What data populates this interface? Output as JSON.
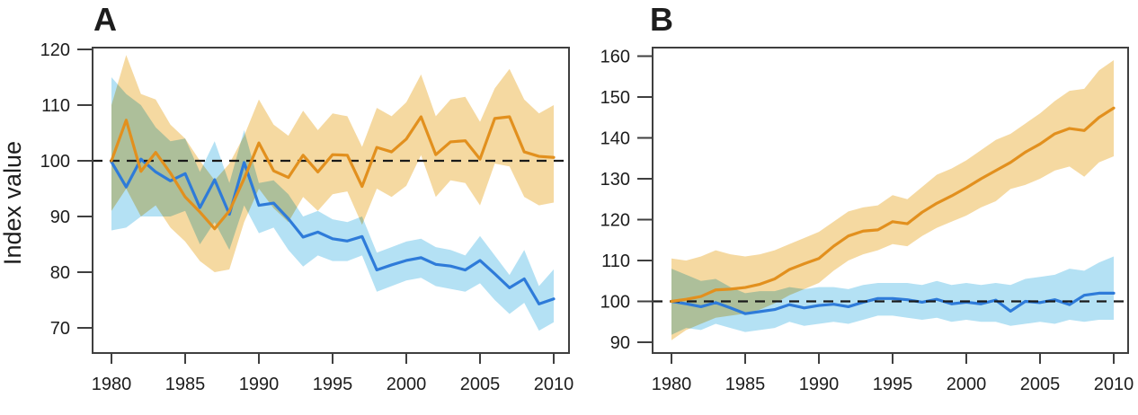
{
  "figure": {
    "y_axis_label": "Index value"
  },
  "chart_data": [
    {
      "type": "line",
      "title": "A",
      "x_start": 1980,
      "x_end": 2010,
      "x_ticks": [
        1980,
        1985,
        1990,
        1995,
        2000,
        2005,
        2010
      ],
      "y_ticks": [
        70,
        80,
        90,
        100,
        110,
        120
      ],
      "ylim": [
        65.5,
        120.8
      ],
      "reference_line": 100,
      "grid": false,
      "legend": "none",
      "series": [
        {
          "name": "orange",
          "color": "#E2901E",
          "band_color": "#F5D9A1",
          "values": [
            100.0,
            107.3,
            98.1,
            101.5,
            97.8,
            93.5,
            90.8,
            87.8,
            91.0,
            96.8,
            103.2,
            98.2,
            97.0,
            101.0,
            98.0,
            101.1,
            101.0,
            95.4,
            102.4,
            101.6,
            103.9,
            107.9,
            101.1,
            103.4,
            103.6,
            100.3,
            107.6,
            107.9,
            101.6,
            100.8,
            100.6
          ],
          "band_low": [
            91.0,
            95.0,
            90.0,
            92.0,
            88.0,
            85.5,
            82.0,
            80.0,
            80.5,
            89.0,
            95.0,
            91.5,
            89.0,
            93.5,
            91.0,
            94.0,
            94.5,
            88.5,
            95.0,
            93.5,
            95.5,
            101.0,
            93.5,
            96.5,
            96.0,
            92.0,
            99.5,
            99.0,
            93.5,
            92.0,
            92.5
          ],
          "band_high": [
            110.0,
            119.0,
            112.0,
            111.0,
            106.5,
            104.0,
            100.0,
            96.5,
            99.5,
            104.5,
            111.0,
            106.5,
            104.5,
            109.0,
            105.5,
            108.5,
            108.0,
            102.5,
            109.5,
            108.0,
            110.5,
            115.5,
            108.0,
            111.0,
            111.5,
            107.0,
            113.0,
            116.5,
            111.0,
            108.5,
            110.0
          ]
        },
        {
          "name": "blue",
          "color": "#2E7BD9",
          "band_color": "#B4E1F4",
          "values": [
            99.8,
            95.3,
            100.3,
            98.0,
            96.4,
            97.7,
            91.6,
            96.6,
            90.4,
            99.7,
            92.0,
            92.4,
            89.6,
            86.3,
            87.2,
            86.0,
            85.6,
            86.4,
            80.4,
            81.3,
            82.1,
            82.6,
            81.4,
            81.1,
            80.4,
            82.1,
            79.7,
            77.2,
            78.8,
            74.3,
            75.2
          ],
          "band_low": [
            87.5,
            88.0,
            90.0,
            90.0,
            90.0,
            91.0,
            85.0,
            89.0,
            84.0,
            92.0,
            87.0,
            88.0,
            84.0,
            81.0,
            83.0,
            82.0,
            82.0,
            83.0,
            76.5,
            77.5,
            78.5,
            79.0,
            77.5,
            77.0,
            76.5,
            78.0,
            75.0,
            72.5,
            74.5,
            69.5,
            71.0
          ],
          "band_high": [
            115.0,
            112.0,
            110.0,
            106.0,
            103.5,
            104.0,
            98.0,
            103.5,
            96.0,
            105.5,
            96.0,
            96.5,
            94.0,
            90.0,
            91.0,
            89.5,
            89.0,
            90.0,
            83.5,
            84.5,
            85.5,
            86.0,
            84.5,
            84.0,
            83.0,
            86.5,
            83.0,
            79.5,
            84.0,
            77.5,
            80.5
          ]
        }
      ]
    },
    {
      "type": "line",
      "title": "B",
      "x_start": 1980,
      "x_end": 2010,
      "x_ticks": [
        1980,
        1985,
        1990,
        1995,
        2000,
        2005,
        2010
      ],
      "y_ticks": [
        90,
        100,
        110,
        120,
        130,
        140,
        150,
        160
      ],
      "ylim": [
        87.4,
        162.1
      ],
      "reference_line": 100,
      "grid": false,
      "legend": "none",
      "series": [
        {
          "name": "orange",
          "color": "#E2901E",
          "band_color": "#F5D9A1",
          "values": [
            100.0,
            100.5,
            101.2,
            102.8,
            103.0,
            103.4,
            104.2,
            105.5,
            107.8,
            109.2,
            110.5,
            113.5,
            116.0,
            117.2,
            117.5,
            119.5,
            119.0,
            121.8,
            124.0,
            125.8,
            127.8,
            130.0,
            132.0,
            134.0,
            136.5,
            138.5,
            141.0,
            142.3,
            141.8,
            145.0,
            147.3
          ],
          "band_low": [
            90.5,
            93.0,
            94.5,
            96.0,
            96.5,
            97.0,
            98.0,
            99.5,
            101.5,
            103.0,
            104.5,
            107.5,
            110.0,
            111.5,
            112.5,
            114.0,
            113.5,
            116.0,
            118.0,
            119.5,
            121.0,
            123.0,
            124.5,
            127.5,
            128.5,
            130.0,
            132.0,
            133.0,
            130.5,
            134.0,
            135.5
          ],
          "band_high": [
            110.5,
            110.0,
            111.0,
            112.5,
            111.5,
            111.0,
            111.5,
            112.5,
            114.0,
            115.5,
            117.0,
            119.5,
            122.0,
            123.0,
            123.5,
            126.0,
            125.0,
            128.0,
            131.0,
            132.5,
            134.5,
            137.0,
            139.5,
            141.0,
            143.5,
            146.0,
            149.0,
            151.5,
            152.0,
            156.5,
            159.0
          ]
        },
        {
          "name": "blue",
          "color": "#2E7BD9",
          "band_color": "#B4E1F4",
          "values": [
            100.0,
            99.4,
            98.7,
            99.7,
            98.4,
            97.0,
            97.5,
            98.0,
            99.2,
            98.4,
            99.0,
            99.3,
            98.7,
            99.8,
            100.7,
            100.7,
            100.4,
            99.8,
            100.5,
            99.4,
            99.8,
            99.4,
            100.3,
            97.6,
            100.0,
            99.7,
            100.4,
            99.2,
            101.5,
            102.0,
            102.0
          ],
          "band_low": [
            91.8,
            93.5,
            93.0,
            94.5,
            93.5,
            92.5,
            93.0,
            93.5,
            95.0,
            94.0,
            94.5,
            95.0,
            94.5,
            95.5,
            96.5,
            96.5,
            96.0,
            95.5,
            96.0,
            95.0,
            95.5,
            95.0,
            95.0,
            94.0,
            94.5,
            95.0,
            94.5,
            95.5,
            95.0,
            95.5,
            95.5
          ],
          "band_high": [
            108.0,
            106.5,
            105.0,
            105.5,
            103.5,
            102.0,
            102.5,
            102.5,
            103.5,
            103.0,
            103.5,
            103.5,
            103.0,
            104.0,
            104.5,
            104.5,
            104.5,
            104.0,
            105.0,
            104.0,
            104.5,
            104.0,
            104.5,
            104.0,
            105.5,
            106.0,
            106.5,
            108.0,
            107.5,
            109.5,
            111.0
          ]
        }
      ]
    }
  ],
  "style": {
    "reference_line_color": "#1a1a1a",
    "axis_color": "#3f3f3f",
    "tick_label_color": "#1c1c1c"
  }
}
